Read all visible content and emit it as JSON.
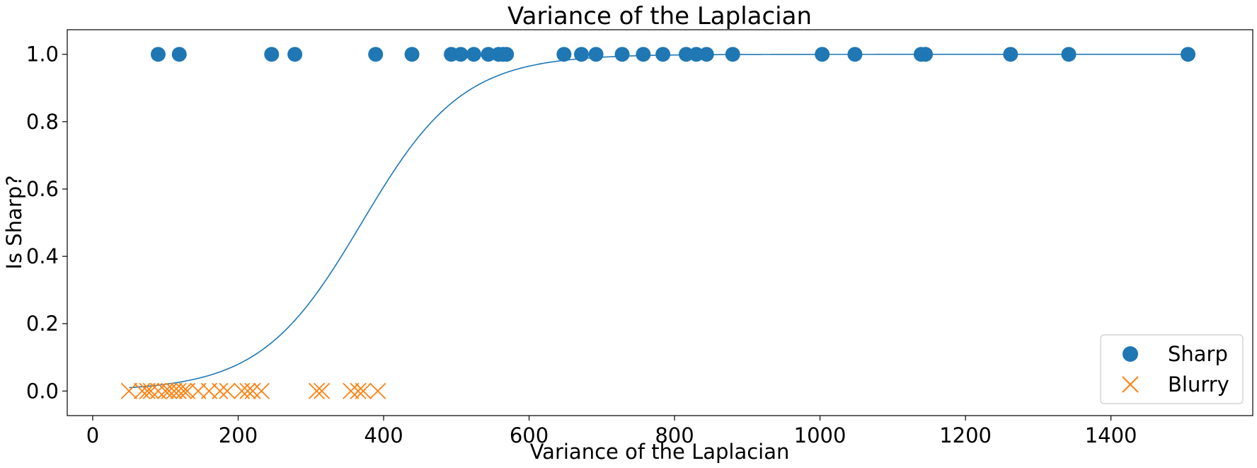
{
  "chart_data": {
    "type": "scatter",
    "title": "Variance of the Laplacian",
    "xlabel": "Variance of the Laplacian",
    "ylabel": "Is Sharp?",
    "xlim": [
      -35,
      1595
    ],
    "ylim": [
      -0.073,
      1.073
    ],
    "xticks": [
      0,
      200,
      400,
      600,
      800,
      1000,
      1200,
      1400
    ],
    "yticks": [
      0.0,
      0.2,
      0.4,
      0.6,
      0.8,
      1.0
    ],
    "xtick_labels": [
      "0",
      "200",
      "400",
      "600",
      "800",
      "1000",
      "1200",
      "1400"
    ],
    "ytick_labels": [
      "0.0",
      "0.2",
      "0.4",
      "0.6",
      "0.8",
      "1.0"
    ],
    "grid": false,
    "legend_position": "bottom-right",
    "series": [
      {
        "name": "Sharp",
        "marker": "circle",
        "color": "#1f77b4",
        "x": [
          90,
          119,
          246,
          278,
          389,
          439,
          493,
          506,
          524,
          544,
          558,
          564,
          569,
          648,
          672,
          692,
          728,
          757,
          784,
          816,
          830,
          844,
          880,
          1003,
          1048,
          1139,
          1145,
          1262,
          1342,
          1506
        ],
        "y": [
          1,
          1,
          1,
          1,
          1,
          1,
          1,
          1,
          1,
          1,
          1,
          1,
          1,
          1,
          1,
          1,
          1,
          1,
          1,
          1,
          1,
          1,
          1,
          1,
          1,
          1,
          1,
          1,
          1,
          1
        ]
      },
      {
        "name": "Blurry",
        "marker": "x",
        "color": "#ff7f0e",
        "x": [
          50,
          68,
          75,
          80,
          90,
          100,
          105,
          112,
          118,
          125,
          130,
          145,
          160,
          175,
          185,
          205,
          213,
          220,
          232,
          308,
          315,
          355,
          365,
          372,
          392
        ],
        "y": [
          0,
          0,
          0,
          0,
          0,
          0,
          0,
          0,
          0,
          0,
          0,
          0,
          0,
          0,
          0,
          0,
          0,
          0,
          0,
          0,
          0,
          0,
          0,
          0,
          0
        ]
      }
    ],
    "fit_curve": {
      "type": "logistic",
      "color": "#1f77b4",
      "midpoint": 370,
      "steepness": 0.0144,
      "x_range": [
        50,
        1506
      ]
    }
  }
}
